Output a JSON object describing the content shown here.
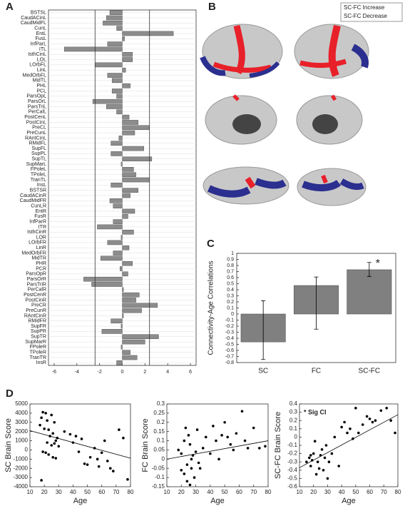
{
  "chart_data": [
    {
      "type": "barh",
      "panel": "A",
      "categories": [
        "BSTSL",
        "CaudACinL",
        "CaudMidFL",
        "CunL",
        "EntL",
        "FusL",
        "InfParL",
        "ITL",
        "IsthCinL",
        "LOL",
        "LOrbFL",
        "LinL",
        "MedOrbFL",
        "MidTL",
        "PHL",
        "PCL",
        "ParsOpL",
        "ParsOrL",
        "ParsTriL",
        "PerCalL",
        "PostCenL",
        "PostCinL",
        "PreCL",
        "PreCunL",
        "RAntCinL",
        "RMidFL",
        "SupFL",
        "SupPL",
        "SupTL",
        "SupMarL",
        "FPoleL",
        "TPoleL",
        "TranTL",
        "InsL",
        "BSTSR",
        "CaudACinR",
        "CaudMidFR",
        "CunLR",
        "EntR",
        "FusR",
        "InfParR",
        "ITR",
        "IsthCinR",
        "LOR",
        "LOrbFR",
        "LinR",
        "MedOrbFR",
        "MidTR",
        "PHR",
        "PCR",
        "ParsOpR",
        "ParsOrR",
        "ParsTriR",
        "PerCalR",
        "PostCenR",
        "PostCinR",
        "PreCR",
        "PreCunR",
        "RAntCinR",
        "RMidFR",
        "SupFR",
        "SupPR",
        "SupTR",
        "SupMarR",
        "FPoleR",
        "TPoleR",
        "TranTR",
        "InsR"
      ],
      "values": [
        -1.1,
        -1.4,
        -1.7,
        -0.5,
        4.5,
        0.2,
        -1.3,
        -5.1,
        0.9,
        0.9,
        -2.4,
        0.3,
        -1.3,
        -0.9,
        0.7,
        -0.9,
        -0.5,
        -2.6,
        -1.4,
        -0.5,
        0.6,
        1.4,
        2.4,
        1.1,
        -0.3,
        -1.0,
        1.9,
        -1.0,
        2.6,
        -0.1,
        1.0,
        1.2,
        2.4,
        -1.0,
        1.4,
        0.7,
        -1.1,
        -0.8,
        1.1,
        0.5,
        -0.8,
        -2.2,
        1.0,
        -0.1,
        -1.3,
        0.6,
        -0.8,
        -1.9,
        0.9,
        -0.2,
        0.5,
        -3.4,
        -2.7,
        0.1,
        1.5,
        1.2,
        3.1,
        1.7,
        0.1,
        -1.0,
        -0.1,
        -1.8,
        3.2,
        2.0,
        -0.1,
        0.7,
        1.3,
        -0.5
      ],
      "color": "#8c8c8c",
      "xlim": [
        -6.5,
        6.5
      ],
      "xticks": [
        -6,
        -4,
        -2,
        0,
        2,
        4,
        6
      ],
      "threshold_lines": [
        -2.4,
        2.4
      ]
    },
    {
      "type": "bar",
      "panel": "C",
      "categories": [
        "SC",
        "FC",
        "SC-FC"
      ],
      "values": [
        -0.46,
        0.47,
        0.73
      ],
      "ci_low": [
        -0.75,
        -0.25,
        0.62
      ],
      "ci_high": [
        0.22,
        0.61,
        0.85
      ],
      "color": "#808080",
      "ylabel": "Connectivity-Age Correlations",
      "annotation": "*",
      "ylim": [
        -0.8,
        1
      ],
      "yticks": [
        -0.8,
        -0.7,
        -0.6,
        -0.5,
        -0.4,
        -0.3,
        -0.2,
        -0.1,
        0,
        0.1,
        0.2,
        0.3,
        0.4,
        0.5,
        0.6,
        0.7,
        0.8,
        0.9,
        1
      ]
    },
    {
      "type": "scatter",
      "panel": "D",
      "xlabel": "Age",
      "ylabel": "SC Brain Score",
      "color": "#000000",
      "x": [
        19,
        21,
        18,
        22,
        17,
        25,
        27,
        20,
        23,
        24,
        26,
        28,
        29,
        22,
        25,
        27,
        30,
        19,
        21,
        23,
        26,
        28,
        18,
        34,
        38,
        40,
        42,
        44,
        46,
        48,
        50,
        52,
        55,
        57,
        58,
        60,
        62,
        64,
        66,
        68,
        72,
        75,
        78
      ],
      "y": [
        4100,
        4000,
        3500,
        3200,
        2700,
        3800,
        3000,
        2300,
        2200,
        1500,
        1800,
        1000,
        1300,
        800,
        500,
        700,
        400,
        -200,
        -300,
        -500,
        -800,
        -900,
        -3300,
        2000,
        1700,
        800,
        1500,
        -200,
        1200,
        -1500,
        -1600,
        -800,
        200,
        -1000,
        -1800,
        -300,
        1000,
        -1200,
        -2000,
        -2300,
        2200,
        1300,
        -3200
      ],
      "trend_line": {
        "x": [
          10,
          80
        ],
        "y": [
          2100,
          -900
        ]
      },
      "xlim": [
        10,
        80
      ],
      "xticks": [
        10,
        20,
        30,
        40,
        50,
        60,
        70,
        80
      ],
      "ylim": [
        -4000,
        5000
      ],
      "yticks": [
        -4000,
        -3000,
        -2000,
        -1000,
        0,
        1000,
        2000,
        3000,
        4000,
        5000
      ]
    },
    {
      "type": "scatter",
      "xlabel": "Age",
      "ylabel": "FC Brain Score",
      "color": "#000000",
      "x": [
        18,
        20,
        22,
        23,
        24,
        25,
        26,
        27,
        28,
        29,
        22,
        24,
        26,
        27,
        30,
        31,
        33,
        35,
        37,
        40,
        42,
        44,
        46,
        48,
        50,
        52,
        54,
        56,
        58,
        62,
        64,
        66,
        70,
        74,
        78,
        32,
        20
      ],
      "y": [
        0.05,
        0.03,
        0.1,
        0.17,
        -0.03,
        0.13,
        0.08,
        -0.05,
        0.02,
        -0.1,
        -0.08,
        -0.12,
        -0.14,
        0.0,
        0.04,
        0.16,
        -0.05,
        0.06,
        0.12,
        0.03,
        0.18,
        0.1,
        0.0,
        0.13,
        0.2,
        0.12,
        0.08,
        0.05,
        0.14,
        0.26,
        0.1,
        0.06,
        0.17,
        0.06,
        0.07,
        -0.02,
        -0.06
      ],
      "trend_line": {
        "x": [
          10,
          80
        ],
        "y": [
          0.0,
          0.1
        ]
      },
      "xlim": [
        10,
        80
      ],
      "xticks": [
        10,
        20,
        30,
        40,
        50,
        60,
        70,
        80
      ],
      "ylim": [
        -0.15,
        0.3
      ],
      "yticks": [
        -0.15,
        -0.1,
        -0.05,
        0,
        0.05,
        0.1,
        0.15,
        0.2,
        0.25,
        0.3
      ]
    },
    {
      "type": "scatter",
      "xlabel": "Age",
      "ylabel": "SC-FC Brain Score",
      "color": "#000000",
      "annotation": "* Sig CI",
      "x": [
        15,
        17,
        18,
        19,
        20,
        21,
        22,
        23,
        24,
        25,
        26,
        27,
        28,
        29,
        30,
        31,
        33,
        35,
        38,
        40,
        42,
        44,
        46,
        48,
        50,
        52,
        55,
        58,
        60,
        62,
        64,
        68,
        72,
        75,
        78,
        18
      ],
      "y": [
        -0.3,
        -0.25,
        -0.35,
        -0.28,
        -0.2,
        -0.05,
        -0.45,
        -0.3,
        -0.38,
        -0.22,
        -0.15,
        -0.4,
        -0.25,
        -0.1,
        -0.5,
        -0.3,
        -0.2,
        0.0,
        -0.35,
        0.12,
        0.18,
        0.05,
        0.1,
        -0.02,
        0.35,
        0.05,
        0.15,
        0.25,
        0.22,
        0.18,
        0.2,
        0.32,
        0.35,
        0.2,
        0.05,
        -0.22
      ],
      "trend_line": {
        "x": [
          10,
          80
        ],
        "y": [
          -0.37,
          0.27
        ]
      },
      "xlim": [
        10,
        80
      ],
      "xticks": [
        10,
        20,
        30,
        40,
        50,
        60,
        70,
        80
      ],
      "ylim": [
        -0.6,
        0.4
      ],
      "yticks": [
        -0.6,
        -0.5,
        -0.4,
        -0.3,
        -0.2,
        -0.1,
        0,
        0.1,
        0.2,
        0.3,
        0.4
      ]
    }
  ],
  "brain_figure": {
    "panel": "B",
    "legend": [
      {
        "name": "SC-FC Increase",
        "color": "#e8202a"
      },
      {
        "name": "SC-FC Decrease",
        "color": "#2b2f8f"
      }
    ]
  }
}
